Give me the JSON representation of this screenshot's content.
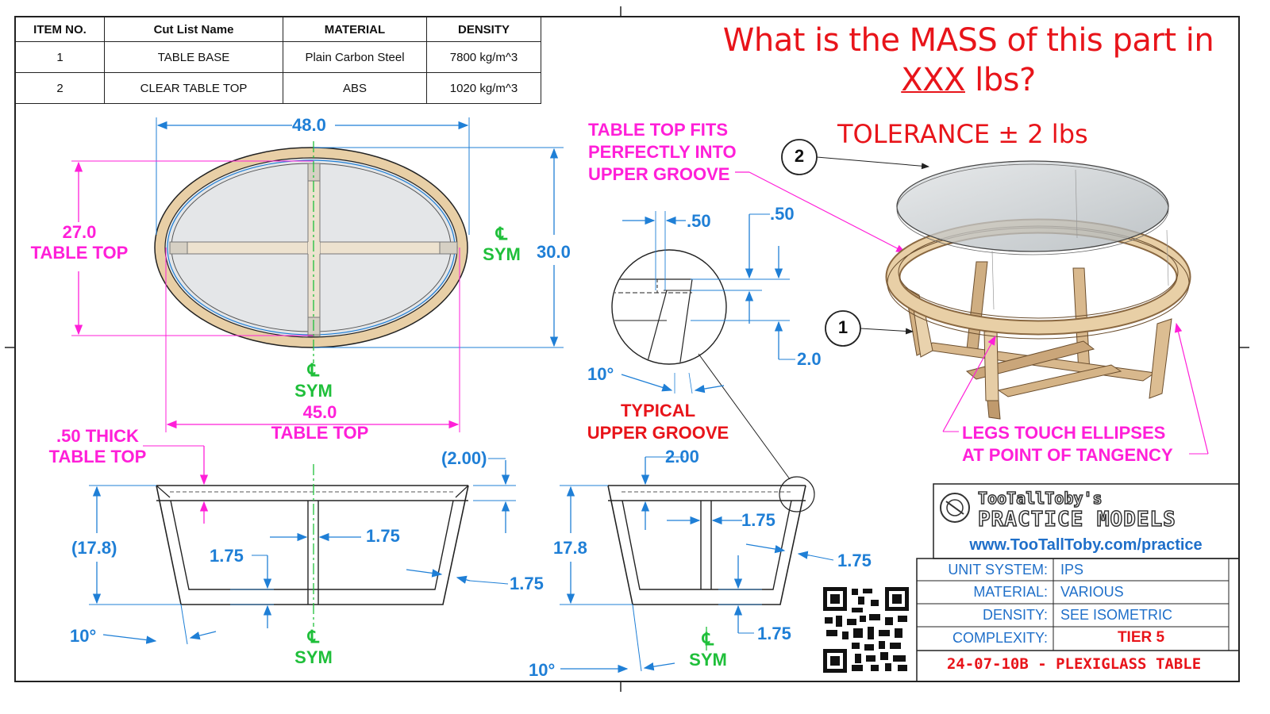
{
  "bom": {
    "headers": [
      "ITEM NO.",
      "Cut List Name",
      "MATERIAL",
      "DENSITY"
    ],
    "rows": [
      {
        "item": "1",
        "name": "TABLE BASE",
        "material": "Plain Carbon Steel",
        "density_value": "7800",
        "density_unit": " kg/m^3"
      },
      {
        "item": "2",
        "name": "CLEAR TABLE TOP",
        "material": "ABS",
        "density_value": "1020",
        "density_unit": " kg/m^3"
      }
    ]
  },
  "question": {
    "line1": "What is the MASS of this part in",
    "placeholder": "XXX",
    "unit": " lbs?",
    "tolerance": "TOLERANCE ± 2 lbs"
  },
  "top_view": {
    "width_dim": "48.0",
    "height_dim": "30.0",
    "top_depth_value": "27.0",
    "top_depth_label": "TABLE TOP",
    "top_width_value": "45.0",
    "top_width_label": "TABLE TOP",
    "sym_mark": "℄",
    "sym_label": "SYM"
  },
  "groove_detail": {
    "callout_line1": "TABLE TOP FITS",
    "callout_line2": "PERFECTLY INTO",
    "callout_line3": "UPPER GROOVE",
    "dim_a": ".50",
    "dim_b": ".50",
    "dim_depth": "2.0",
    "angle": "10°",
    "label_line1": "TYPICAL",
    "label_line2": "UPPER GROOVE"
  },
  "front_view": {
    "thick_line1": ".50 THICK",
    "thick_line2": "TABLE TOP",
    "ref_width": "(2.00)",
    "ref_height": "(17.8)",
    "leg_a": "1.75",
    "leg_b": "1.75",
    "leg_c": "1.75",
    "angle": "10°"
  },
  "side_view": {
    "width": "2.00",
    "height": "17.8",
    "leg_a": "1.75",
    "leg_b": "1.75",
    "leg_c": "1.75",
    "angle": "10°"
  },
  "isometric": {
    "balloon_top": "2",
    "balloon_base": "1",
    "legs_line1": "LEGS TOUCH ELLIPSES",
    "legs_line2": "AT POINT OF TANGENCY"
  },
  "title_block": {
    "brand_line1": "TooTallToby's",
    "brand_line2": "PRACTICE MODELS",
    "url": "www.TooTallToby.com/practice",
    "specs": [
      {
        "label": "UNIT SYSTEM:",
        "value": "IPS"
      },
      {
        "label": "MATERIAL:",
        "value": "VARIOUS"
      },
      {
        "label": "DENSITY:",
        "value": "SEE ISOMETRIC"
      },
      {
        "label": "COMPLEXITY:",
        "value": "TIER 5"
      }
    ],
    "drawing_number": "24-07-10B - PLEXIGLASS TABLE"
  },
  "colors": {
    "dimension": "#1f7fd6",
    "callout": "#ff1fd8",
    "centerline": "#1fbf3a",
    "accent": "#e8141a",
    "wood": "#e8cfa6"
  }
}
